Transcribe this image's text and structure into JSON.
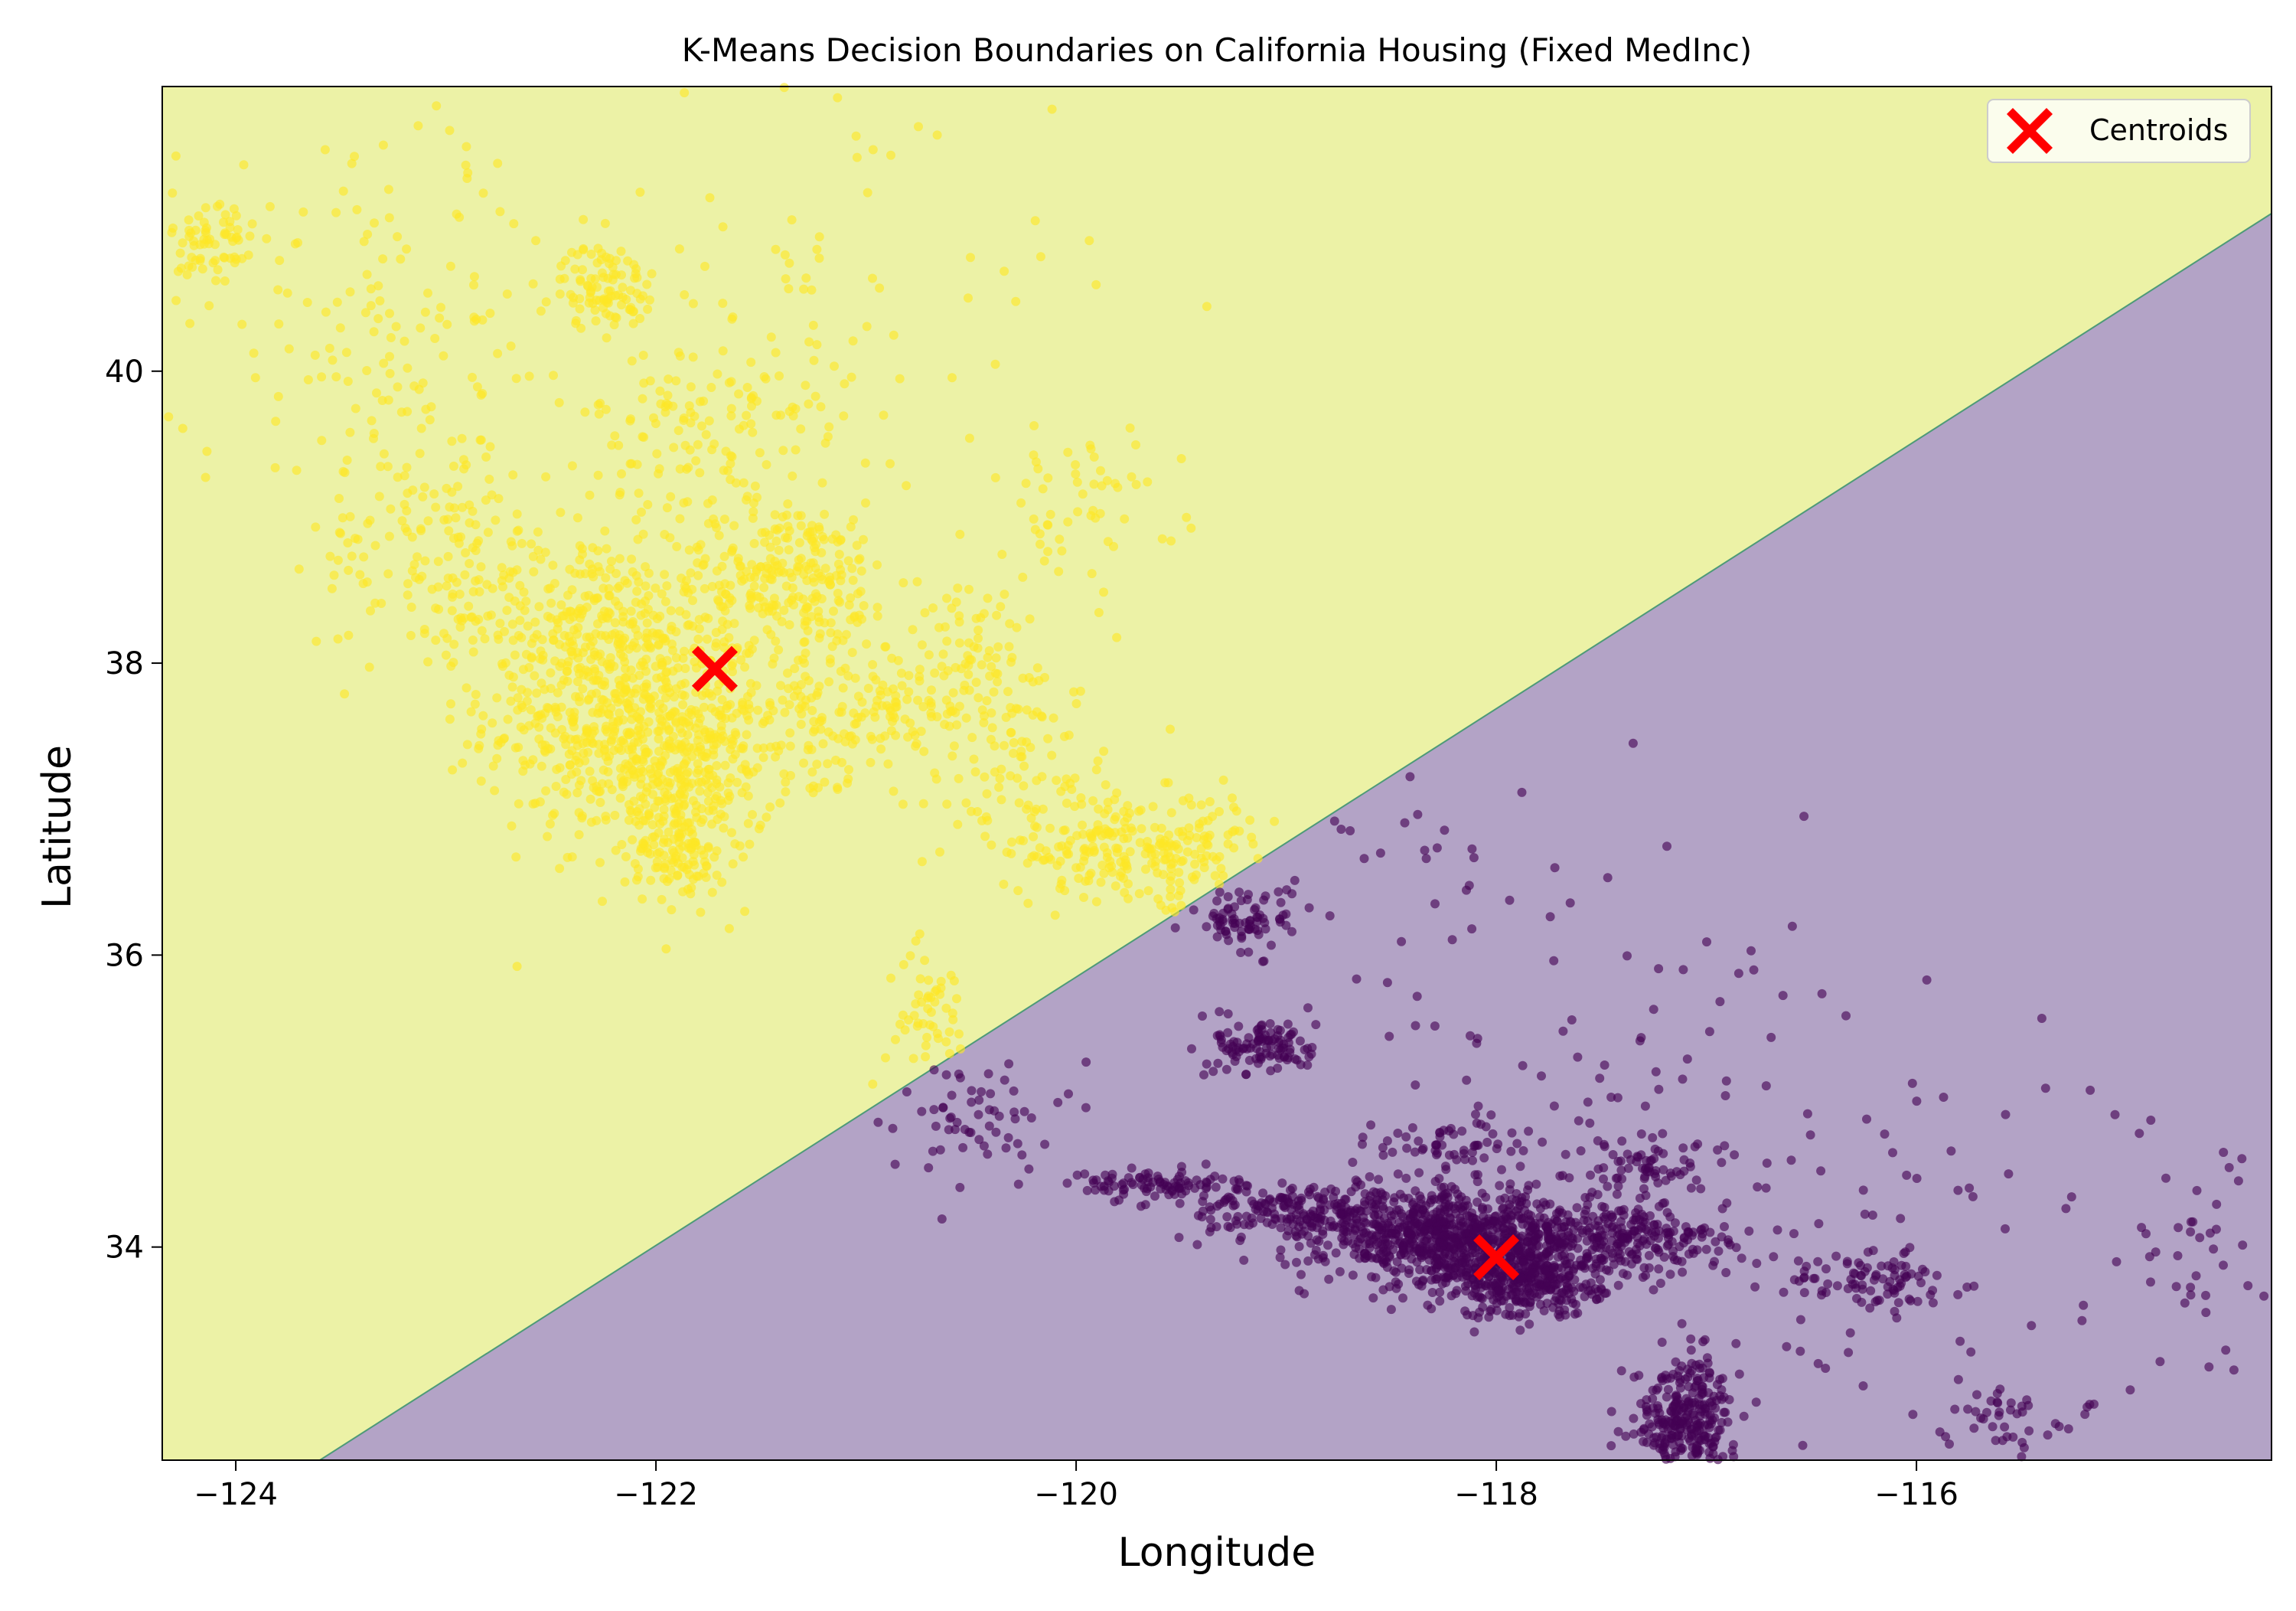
{
  "chart_data": {
    "type": "scatter",
    "title": "K-Means Decision Boundaries on California Housing (Fixed MedInc)",
    "xlabel": "Longitude",
    "ylabel": "Latitude",
    "xlim": [
      -124.35,
      -114.31
    ],
    "ylim": [
      32.54,
      41.95
    ],
    "x_ticks": [
      -124,
      -122,
      -120,
      -118,
      -116
    ],
    "x_tick_labels": [
      "−124",
      "−122",
      "−120",
      "−118",
      "−116"
    ],
    "y_ticks": [
      34,
      36,
      38,
      40
    ],
    "y_tick_labels": [
      "34",
      "36",
      "38",
      "40"
    ],
    "grid": false,
    "legend": {
      "placement": "top-right",
      "entries": [
        "Centroids"
      ]
    },
    "colors": {
      "cluster_0": "#440154",
      "cluster_1": "#fde725",
      "region_0": "#b3a3c6",
      "region_1": "#ecf2a6",
      "boundary": "#4d9a78",
      "centroid": "#ff0000"
    },
    "decision_boundary": [
      [
        -123.6,
        32.54
      ],
      [
        -114.31,
        41.08
      ]
    ],
    "centroids": [
      {
        "x": -121.72,
        "y": 37.96
      },
      {
        "x": -118.0,
        "y": 33.93
      }
    ],
    "series": [
      {
        "cluster": 1,
        "color": "#fde725",
        "clusters": [
          {
            "x": -122.15,
            "y": 37.6,
            "sx": 0.33,
            "sy": 0.4,
            "n": 520
          },
          {
            "x": -121.85,
            "y": 37.2,
            "sx": 0.2,
            "sy": 0.3,
            "n": 220
          },
          {
            "x": -122.35,
            "y": 38.3,
            "sx": 0.3,
            "sy": 0.3,
            "n": 220
          },
          {
            "x": -121.4,
            "y": 38.6,
            "sx": 0.28,
            "sy": 0.25,
            "n": 260
          },
          {
            "x": -121.1,
            "y": 37.7,
            "sx": 0.35,
            "sy": 0.25,
            "n": 200
          },
          {
            "x": -121.9,
            "y": 36.7,
            "sx": 0.12,
            "sy": 0.18,
            "n": 100
          },
          {
            "x": -119.75,
            "y": 36.75,
            "sx": 0.3,
            "sy": 0.18,
            "n": 220
          },
          {
            "x": -122.25,
            "y": 40.58,
            "sx": 0.1,
            "sy": 0.15,
            "n": 90
          },
          {
            "x": -124.1,
            "y": 40.85,
            "sx": 0.1,
            "sy": 0.2,
            "n": 70
          },
          {
            "x": -121.7,
            "y": 39.6,
            "sx": 0.3,
            "sy": 0.3,
            "n": 110
          },
          {
            "x": -120.5,
            "y": 38.0,
            "sx": 0.25,
            "sy": 0.3,
            "n": 90
          },
          {
            "x": -120.7,
            "y": 35.55,
            "sx": 0.1,
            "sy": 0.25,
            "n": 60
          },
          {
            "x": -123.0,
            "y": 38.8,
            "sx": 0.3,
            "sy": 0.4,
            "n": 140
          },
          {
            "x": -123.2,
            "y": 40.2,
            "sx": 0.5,
            "sy": 0.8,
            "n": 160
          },
          {
            "x": -121.5,
            "y": 40.3,
            "sx": 0.7,
            "sy": 0.8,
            "n": 100
          },
          {
            "x": -120.0,
            "y": 39.1,
            "sx": 0.25,
            "sy": 0.25,
            "n": 60
          },
          {
            "x": -120.3,
            "y": 37.2,
            "sx": 0.4,
            "sy": 0.3,
            "n": 80
          },
          {
            "x": -119.3,
            "y": 36.5,
            "sx": 0.3,
            "sy": 0.2,
            "n": 70
          }
        ]
      },
      {
        "cluster": 0,
        "color": "#440154",
        "clusters": [
          {
            "x": -118.2,
            "y": 34.05,
            "sx": 0.3,
            "sy": 0.15,
            "n": 800
          },
          {
            "x": -117.85,
            "y": 33.75,
            "sx": 0.18,
            "sy": 0.12,
            "n": 300
          },
          {
            "x": -117.4,
            "y": 34.05,
            "sx": 0.25,
            "sy": 0.12,
            "n": 250
          },
          {
            "x": -117.1,
            "y": 32.8,
            "sx": 0.12,
            "sy": 0.22,
            "n": 320
          },
          {
            "x": -118.9,
            "y": 34.25,
            "sx": 0.3,
            "sy": 0.1,
            "n": 220
          },
          {
            "x": -119.65,
            "y": 34.43,
            "sx": 0.2,
            "sy": 0.05,
            "n": 90
          },
          {
            "x": -119.1,
            "y": 35.38,
            "sx": 0.12,
            "sy": 0.1,
            "n": 110
          },
          {
            "x": -119.2,
            "y": 36.25,
            "sx": 0.12,
            "sy": 0.12,
            "n": 80
          },
          {
            "x": -116.2,
            "y": 33.75,
            "sx": 0.2,
            "sy": 0.1,
            "n": 80
          },
          {
            "x": -117.3,
            "y": 34.55,
            "sx": 0.15,
            "sy": 0.1,
            "n": 60
          },
          {
            "x": -118.2,
            "y": 34.7,
            "sx": 0.18,
            "sy": 0.1,
            "n": 60
          },
          {
            "x": -120.5,
            "y": 34.9,
            "sx": 0.2,
            "sy": 0.2,
            "n": 60
          },
          {
            "x": -115.6,
            "y": 32.85,
            "sx": 0.15,
            "sy": 0.1,
            "n": 40
          },
          {
            "x": -117.5,
            "y": 35.1,
            "sx": 0.8,
            "sy": 0.8,
            "n": 120
          },
          {
            "x": -116.0,
            "y": 34.0,
            "sx": 0.8,
            "sy": 0.7,
            "n": 80
          },
          {
            "x": -114.6,
            "y": 33.9,
            "sx": 0.2,
            "sy": 0.5,
            "n": 30
          },
          {
            "x": -118.4,
            "y": 36.5,
            "sx": 0.3,
            "sy": 0.5,
            "n": 25
          }
        ]
      }
    ]
  }
}
